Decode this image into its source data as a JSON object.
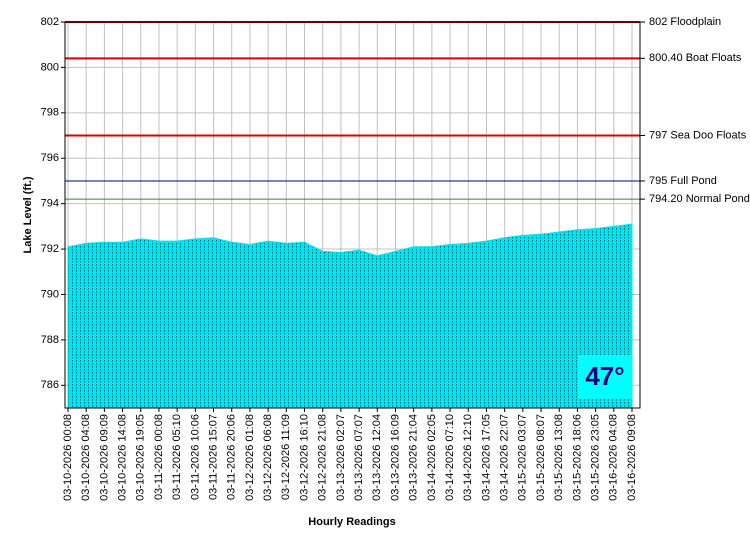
{
  "chart_data": {
    "type": "area",
    "y_label": "Lake Level (ft.)",
    "x_label": "Hourly Readings",
    "annotation": "47°",
    "categories": [
      "03-10-2026 00:08",
      "03-10-2026 04:08",
      "03-10-2026 09:09",
      "03-10-2026 14:08",
      "03-10-2026 19:05",
      "03-11-2026 00:08",
      "03-11-2026 05:10",
      "03-11-2026 10:06",
      "03-11-2026 15:07",
      "03-11-2026 20:06",
      "03-12-2026 01:08",
      "03-12-2026 06:08",
      "03-12-2026 11:09",
      "03-12-2026 16:10",
      "03-12-2026 21:08",
      "03-13-2026 02:07",
      "03-13-2026 07:07",
      "03-13-2026 12:04",
      "03-13-2026 16:09",
      "03-13-2026 21:04",
      "03-14-2026 02:05",
      "03-14-2026 07:10",
      "03-14-2026 12:10",
      "03-14-2026 17:05",
      "03-14-2026 22:07",
      "03-15-2026 03:07",
      "03-15-2026 08:07",
      "03-15-2026 13:08",
      "03-15-2026 18:06",
      "03-15-2026 23:05",
      "03-16-2026 04:08",
      "03-16-2026 09:08"
    ],
    "series": [
      {
        "color": "#00e5ee",
        "values": [
          792.1,
          792.25,
          792.3,
          792.3,
          792.45,
          792.35,
          792.35,
          792.45,
          792.5,
          792.3,
          792.2,
          792.35,
          792.25,
          792.3,
          791.9,
          791.85,
          791.95,
          791.7,
          791.9,
          792.1,
          792.1,
          792.2,
          792.25,
          792.35,
          792.5,
          792.6,
          792.65,
          792.75,
          792.85,
          792.9,
          793.0,
          793.1
        ]
      }
    ],
    "reference_lines": [
      {
        "value": 802,
        "label": "802 Floodplain",
        "color": "#e00000"
      },
      {
        "value": 800.4,
        "label": "800.40 Boat Floats",
        "color": "#e00000"
      },
      {
        "value": 797,
        "label": "797 Sea Doo Floats",
        "color": "#e00000"
      },
      {
        "value": 795,
        "label": "795 Full Pond",
        "color": "#000080"
      },
      {
        "value": 794.2,
        "label": "794.20 Normal Pond",
        "color": "#2e8b2e"
      }
    ],
    "ylim": [
      785,
      802
    ],
    "yticks": [
      786,
      788,
      790,
      792,
      794,
      796,
      798,
      800,
      802
    ],
    "grid": true
  }
}
